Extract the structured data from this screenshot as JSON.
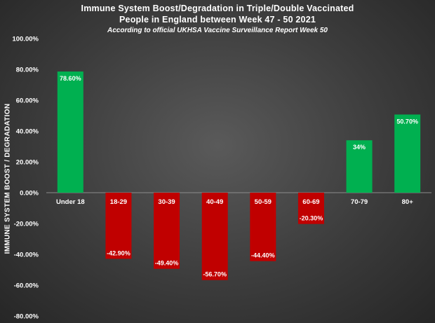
{
  "chart_data": {
    "type": "bar",
    "title_line1": "Immune System Boost/Degradation in Triple/Double Vaccinated",
    "title_line2": "People in England between Week 47 - 50 2021",
    "subtitle": "According to official UKHSA Vaccine Surveillance Report Week 50",
    "ylabel": "IMMUNE SYSTEM BOOST / DEGRADATION",
    "xlabel": "",
    "categories": [
      "Under 18",
      "18-29",
      "30-39",
      "40-49",
      "50-59",
      "60-69",
      "70-79",
      "80+"
    ],
    "values": [
      78.6,
      -42.9,
      -49.4,
      -56.7,
      -44.4,
      -20.3,
      34,
      50.7
    ],
    "data_labels": [
      "78.60%",
      "-42.90%",
      "-49.40%",
      "-56.70%",
      "-44.40%",
      "-20.30%",
      "34%",
      "50.70%"
    ],
    "ylim": [
      -80,
      100
    ],
    "yticks": [
      100,
      80,
      60,
      40,
      20,
      0,
      -20,
      -40,
      -60,
      -80
    ],
    "ytick_labels": [
      "100.00%",
      "80.00%",
      "60.00%",
      "40.00%",
      "20.00%",
      "0.00%",
      "-20.00%",
      "-40.00%",
      "-60.00%",
      "-80.00%"
    ],
    "grid": false,
    "colors": {
      "positive": "#00b050",
      "negative": "#c00000",
      "zero_line": "#8c8c8c"
    }
  }
}
